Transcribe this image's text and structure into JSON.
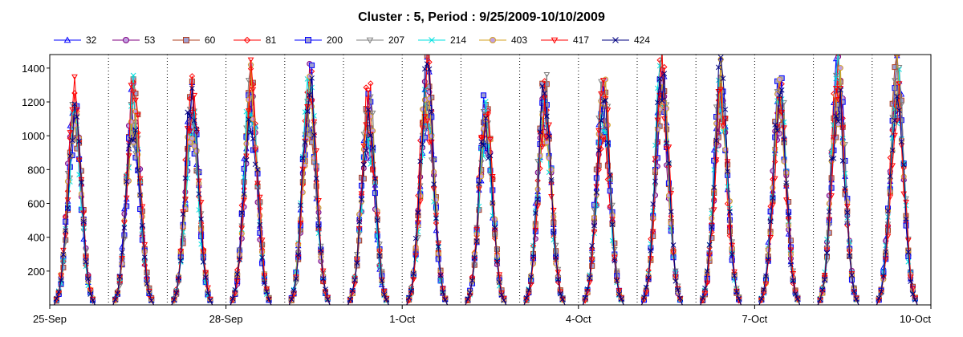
{
  "chart_data": {
    "type": "line",
    "title": "Cluster : 5, Period : 9/25/2009-10/10/2009",
    "xlabel": "",
    "ylabel": "",
    "x_tick_labels": [
      "25-Sep",
      "28-Sep",
      "1-Oct",
      "4-Oct",
      "7-Oct",
      "10-Oct"
    ],
    "x_range_days": [
      0,
      15
    ],
    "x_tick_days": [
      0,
      3,
      6,
      9,
      12,
      15
    ],
    "ylim": [
      0,
      1480
    ],
    "y_ticks": [
      200,
      400,
      600,
      800,
      1000,
      1200,
      1400
    ],
    "grid": "vertical dotted lines at day boundaries",
    "legend": "top",
    "day_peaks": [
      1320,
      1310,
      1320,
      1390,
      1400,
      1310,
      1470,
      1250,
      1390,
      1370,
      1470,
      1420,
      1380,
      1470,
      1480
    ],
    "series": [
      {
        "name": "32",
        "color": "#0000ff",
        "marker": "triangle-up"
      },
      {
        "name": "53",
        "color": "#800080",
        "marker": "circle"
      },
      {
        "name": "60",
        "color": "#b04020",
        "marker": "square"
      },
      {
        "name": "81",
        "color": "#ff0000",
        "marker": "diamond"
      },
      {
        "name": "200",
        "color": "#0000ff",
        "marker": "square"
      },
      {
        "name": "207",
        "color": "#808080",
        "marker": "triangle-down"
      },
      {
        "name": "214",
        "color": "#00e0e0",
        "marker": "x"
      },
      {
        "name": "403",
        "color": "#d4a020",
        "marker": "circle"
      },
      {
        "name": "417",
        "color": "#ff0000",
        "marker": "triangle-down"
      },
      {
        "name": "424",
        "color": "#000080",
        "marker": "x"
      }
    ]
  }
}
